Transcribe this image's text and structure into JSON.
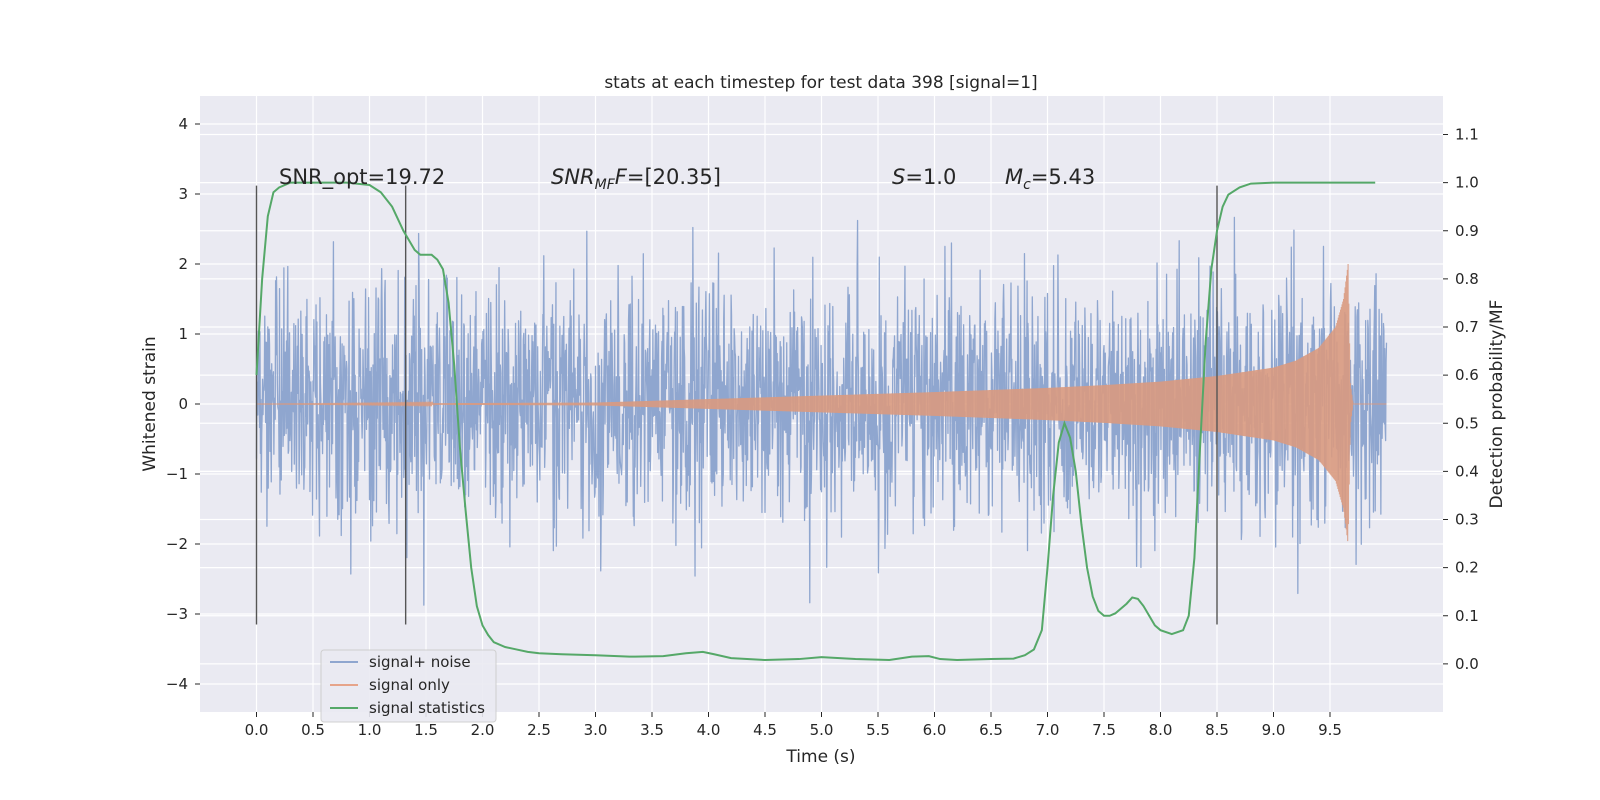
{
  "chart_data": {
    "type": "line",
    "title": "stats at each timestep for test data 398 [signal=1]",
    "xlabel": "Time (s)",
    "ylabel": "Whitened strain",
    "ylabel_right": "Detection probability/MF",
    "xlim": [
      -0.5,
      10.5
    ],
    "ylim": [
      -4.4,
      4.4
    ],
    "ylim_right": [
      -0.1,
      1.18
    ],
    "xticks": [
      "0.0",
      "0.5",
      "1.0",
      "1.5",
      "2.0",
      "2.5",
      "3.0",
      "3.5",
      "4.0",
      "4.5",
      "5.0",
      "5.5",
      "6.0",
      "6.5",
      "7.0",
      "7.5",
      "8.0",
      "8.5",
      "9.0",
      "9.5"
    ],
    "xtick_values": [
      0,
      0.5,
      1,
      1.5,
      2,
      2.5,
      3,
      3.5,
      4,
      4.5,
      5,
      5.5,
      6,
      6.5,
      7,
      7.5,
      8,
      8.5,
      9,
      9.5
    ],
    "yticks": [
      "4",
      "3",
      "2",
      "1",
      "0",
      "−1",
      "−2",
      "−3",
      "−4"
    ],
    "ytick_values": [
      4,
      3,
      2,
      1,
      0,
      -1,
      -2,
      -3,
      -4
    ],
    "yticks_right": [
      "1.1",
      "1.0",
      "0.9",
      "0.8",
      "0.7",
      "0.6",
      "0.5",
      "0.4",
      "0.3",
      "0.2",
      "0.1",
      "0.0"
    ],
    "ytick_values_right": [
      1.1,
      1.0,
      0.9,
      0.8,
      0.7,
      0.6,
      0.5,
      0.4,
      0.3,
      0.2,
      0.1,
      0.0
    ],
    "annotations": {
      "snr_opt": "SNR_opt=19.72",
      "snr_mf_main": "SNR",
      "snr_mf_sub": "MF",
      "snr_mf_value": "=[20.35]",
      "s_main": "S",
      "s_value": "=1.0",
      "mc_main": "M",
      "mc_sub": "c",
      "mc_value": "=5.43"
    },
    "vlines_x": [
      0.0,
      1.32,
      8.5
    ],
    "vline_range": [
      -3.15,
      3.12
    ],
    "series": [
      {
        "name": "signal+ noise",
        "color": "#8fa6cf",
        "x_range": [
          0,
          10.0
        ],
        "envelope_rms": 1.0,
        "peak_envelope": 3.3
      },
      {
        "name": "signal only",
        "color": "#dd8452",
        "x": [
          0,
          3,
          4,
          5,
          6,
          7,
          7.5,
          8,
          8.5,
          9,
          9.2,
          9.4,
          9.55,
          9.62,
          9.66,
          9.68,
          9.7
        ],
        "amplitude": [
          0.0,
          0.02,
          0.07,
          0.12,
          0.17,
          0.23,
          0.27,
          0.32,
          0.4,
          0.52,
          0.62,
          0.8,
          1.1,
          1.5,
          2.0,
          0.3,
          0.05
        ]
      },
      {
        "name": "signal statistics",
        "color": "#55a868",
        "x": [
          0.0,
          0.05,
          0.1,
          0.15,
          0.2,
          0.3,
          0.5,
          0.8,
          1.0,
          1.1,
          1.2,
          1.3,
          1.35,
          1.4,
          1.45,
          1.5,
          1.55,
          1.6,
          1.65,
          1.7,
          1.75,
          1.8,
          1.85,
          1.9,
          1.95,
          2.0,
          2.05,
          2.1,
          2.2,
          2.3,
          2.4,
          2.5,
          2.7,
          3.0,
          3.3,
          3.6,
          3.8,
          3.95,
          4.05,
          4.2,
          4.5,
          4.8,
          5.0,
          5.3,
          5.6,
          5.8,
          5.95,
          6.05,
          6.2,
          6.5,
          6.7,
          6.8,
          6.88,
          6.95,
          7.0,
          7.05,
          7.1,
          7.15,
          7.2,
          7.25,
          7.3,
          7.35,
          7.4,
          7.45,
          7.5,
          7.55,
          7.6,
          7.7,
          7.75,
          7.8,
          7.85,
          7.9,
          7.95,
          8.0,
          8.1,
          8.2,
          8.25,
          8.3,
          8.35,
          8.4,
          8.45,
          8.5,
          8.55,
          8.6,
          8.7,
          8.8,
          9.0,
          9.3,
          9.6,
          9.9
        ],
        "y": [
          0.6,
          0.8,
          0.93,
          0.98,
          0.99,
          1.0,
          1.0,
          1.0,
          0.995,
          0.98,
          0.95,
          0.9,
          0.88,
          0.86,
          0.85,
          0.85,
          0.85,
          0.84,
          0.82,
          0.75,
          0.62,
          0.45,
          0.32,
          0.2,
          0.12,
          0.08,
          0.06,
          0.045,
          0.035,
          0.03,
          0.025,
          0.022,
          0.02,
          0.018,
          0.015,
          0.016,
          0.022,
          0.025,
          0.02,
          0.012,
          0.008,
          0.01,
          0.014,
          0.01,
          0.008,
          0.015,
          0.016,
          0.01,
          0.008,
          0.01,
          0.011,
          0.018,
          0.03,
          0.07,
          0.2,
          0.35,
          0.46,
          0.5,
          0.47,
          0.4,
          0.29,
          0.2,
          0.14,
          0.11,
          0.1,
          0.1,
          0.105,
          0.125,
          0.138,
          0.135,
          0.12,
          0.1,
          0.08,
          0.07,
          0.062,
          0.07,
          0.1,
          0.22,
          0.45,
          0.67,
          0.82,
          0.9,
          0.95,
          0.975,
          0.99,
          0.998,
          1.0,
          1.0,
          1.0,
          1.0
        ]
      }
    ],
    "legend_position": "lower-left",
    "grid": true,
    "background": "#eaeaf2"
  }
}
